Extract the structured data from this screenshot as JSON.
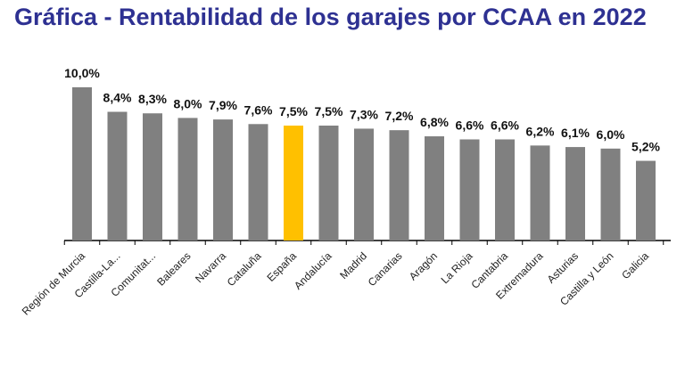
{
  "header": {
    "title": "Gráfica - Rentabilidad de los garajes por CCAA en 2022"
  },
  "chart_data": {
    "type": "bar",
    "title": "Gráfica - Rentabilidad de los garajes por CCAA en 2022",
    "xlabel": "",
    "ylabel": "",
    "ylim": [
      0,
      10
    ],
    "grid": false,
    "legend": "none",
    "categories": [
      "Región de Murcia",
      "Castilla-La...",
      "Comunitat...",
      "Baleares",
      "Navarra",
      "Cataluña",
      "España",
      "Andalucía",
      "Madrid",
      "Canarias",
      "Aragón",
      "La Rioja",
      "Cantabria",
      "Extremadura",
      "Asturias",
      "Castilla y León",
      "Galicia"
    ],
    "values": [
      10.0,
      8.4,
      8.3,
      8.0,
      7.9,
      7.6,
      7.5,
      7.5,
      7.3,
      7.2,
      6.8,
      6.6,
      6.6,
      6.2,
      6.1,
      6.0,
      5.2
    ],
    "value_labels": [
      "10,0%",
      "8,4%",
      "8,3%",
      "8,0%",
      "7,9%",
      "7,6%",
      "7,5%",
      "7,5%",
      "7,3%",
      "7,2%",
      "6,8%",
      "6,6%",
      "6,6%",
      "6,2%",
      "6,1%",
      "6,0%",
      "5,2%"
    ],
    "highlight_index": 6,
    "colors": {
      "bar": "#808080",
      "highlight": "#ffc000",
      "axis": "#000000",
      "title": "#2e3192"
    }
  }
}
